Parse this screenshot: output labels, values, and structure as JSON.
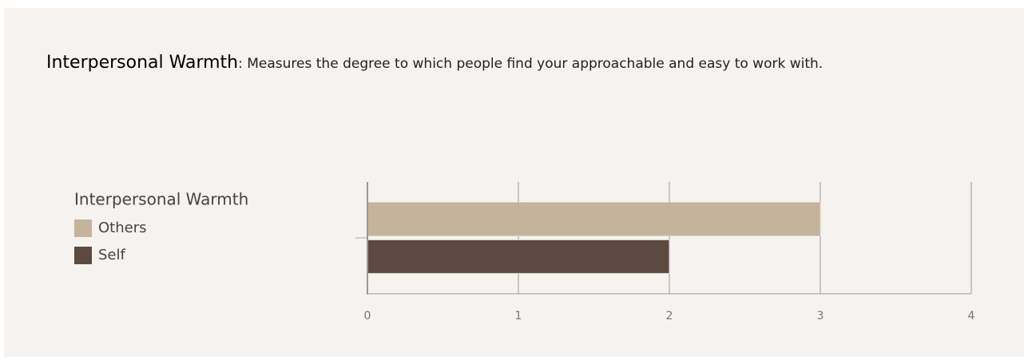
{
  "description": {
    "term": "Interpersonal Warmth",
    "text": ": Measures the degree to which people find your approachable and easy to work with."
  },
  "chart_data": {
    "type": "bar",
    "orientation": "horizontal",
    "categories": [
      "Interpersonal Warmth"
    ],
    "series": [
      {
        "name": "Others",
        "color": "#c4b49b",
        "values": [
          3
        ]
      },
      {
        "name": "Self",
        "color": "#5c4a40",
        "values": [
          2
        ]
      }
    ],
    "xlim": [
      0,
      4
    ],
    "xticks": [
      0,
      1,
      2,
      3,
      4
    ],
    "grid": true
  }
}
